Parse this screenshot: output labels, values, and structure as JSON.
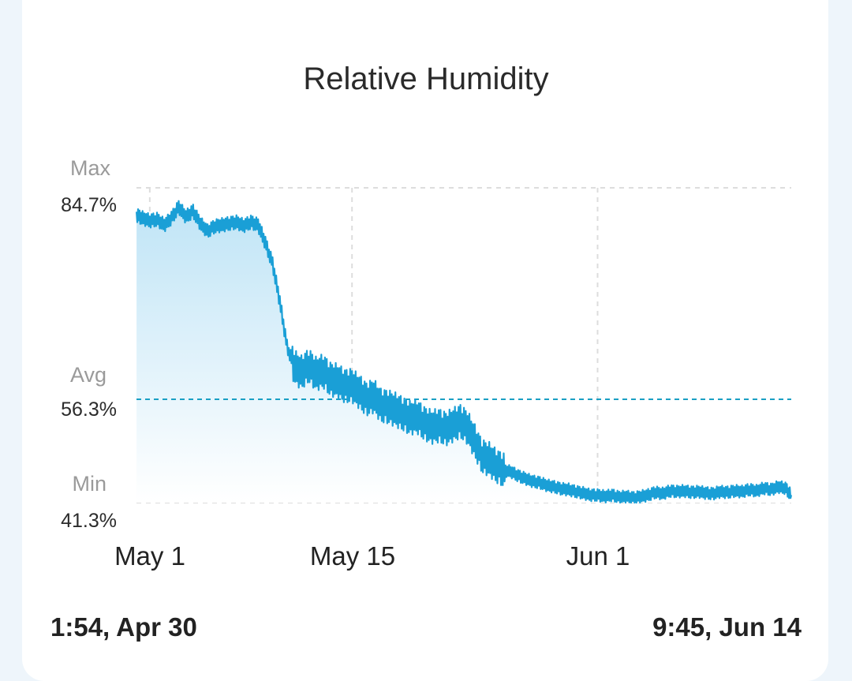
{
  "card": {
    "start_time": "1:54, Apr 30",
    "end_time": "9:45, Jun 14"
  },
  "chart_data": {
    "type": "area",
    "title": "Relative Humidity",
    "unit": "%",
    "xlim": [
      "2024-04-30T01:54",
      "2024-06-14T09:45"
    ],
    "ylim": [
      41.3,
      84.7
    ],
    "x_ticks": [
      {
        "date": "2024-05-01",
        "label": "May 1"
      },
      {
        "date": "2024-05-15",
        "label": "May 15"
      },
      {
        "date": "2024-06-01",
        "label": "Jun 1"
      }
    ],
    "stats": {
      "max": {
        "caption": "Max",
        "value": 84.7,
        "label": "84.7%"
      },
      "avg": {
        "caption": "Avg",
        "value": 56.3,
        "label": "56.3%"
      },
      "min": {
        "caption": "Min",
        "value": 41.3,
        "label": "41.3%"
      }
    },
    "grid": true,
    "colors": {
      "line": "#1a9fd6",
      "fill_top": "#bfe4f6",
      "avg_line": "#1a9fc4",
      "grid": "#dddddd"
    },
    "series": [
      {
        "points": [
          [
            "2024-04-30T02:00",
            83.0
          ],
          [
            "2024-04-30T12:00",
            82.6
          ],
          [
            "2024-05-01T00:00",
            82.2
          ],
          [
            "2024-05-01T12:00",
            82.4
          ],
          [
            "2024-05-02T00:00",
            81.6
          ],
          [
            "2024-05-02T12:00",
            82.6
          ],
          [
            "2024-05-03T00:00",
            84.2
          ],
          [
            "2024-05-03T12:00",
            82.8
          ],
          [
            "2024-05-04T00:00",
            83.6
          ],
          [
            "2024-05-04T12:00",
            81.8
          ],
          [
            "2024-05-05T00:00",
            80.7
          ],
          [
            "2024-05-05T12:00",
            81.4
          ],
          [
            "2024-05-06T00:00",
            81.6
          ],
          [
            "2024-05-06T12:00",
            81.8
          ],
          [
            "2024-05-07T00:00",
            82.0
          ],
          [
            "2024-05-07T12:00",
            81.5
          ],
          [
            "2024-05-08T00:00",
            82.0
          ],
          [
            "2024-05-08T12:00",
            81.6
          ],
          [
            "2024-05-09T00:00",
            79.0
          ],
          [
            "2024-05-09T12:00",
            76.0
          ],
          [
            "2024-05-10T00:00",
            70.5
          ],
          [
            "2024-05-10T12:00",
            64.0
          ],
          [
            "2024-05-11T00:00",
            61.0
          ],
          [
            "2024-05-11T12:00",
            60.2
          ],
          [
            "2024-05-12T00:00",
            61.2
          ],
          [
            "2024-05-12T12:00",
            60.0
          ],
          [
            "2024-05-13T00:00",
            60.4
          ],
          [
            "2024-05-13T12:00",
            59.2
          ],
          [
            "2024-05-14T00:00",
            59.0
          ],
          [
            "2024-05-14T12:00",
            58.2
          ],
          [
            "2024-05-15T00:00",
            58.3
          ],
          [
            "2024-05-15T12:00",
            57.4
          ],
          [
            "2024-05-16T00:00",
            56.3
          ],
          [
            "2024-05-16T12:00",
            56.8
          ],
          [
            "2024-05-17T00:00",
            55.4
          ],
          [
            "2024-05-17T12:00",
            55.2
          ],
          [
            "2024-05-18T00:00",
            54.8
          ],
          [
            "2024-05-18T12:00",
            54.2
          ],
          [
            "2024-05-19T00:00",
            53.6
          ],
          [
            "2024-05-19T12:00",
            53.8
          ],
          [
            "2024-05-20T00:00",
            52.8
          ],
          [
            "2024-05-20T12:00",
            52.3
          ],
          [
            "2024-05-21T00:00",
            52.5
          ],
          [
            "2024-05-21T12:00",
            52.0
          ],
          [
            "2024-05-22T00:00",
            52.6
          ],
          [
            "2024-05-22T12:00",
            53.1
          ],
          [
            "2024-05-23T00:00",
            52.2
          ],
          [
            "2024-05-23T12:00",
            50.2
          ],
          [
            "2024-05-24T00:00",
            48.0
          ],
          [
            "2024-05-24T12:00",
            47.6
          ],
          [
            "2024-05-25T00:00",
            46.6
          ],
          [
            "2024-05-25T12:00",
            46.0
          ],
          [
            "2024-05-26T00:00",
            45.8
          ],
          [
            "2024-05-26T12:00",
            45.2
          ],
          [
            "2024-05-27T00:00",
            44.8
          ],
          [
            "2024-05-27T12:00",
            44.4
          ],
          [
            "2024-05-28T00:00",
            44.2
          ],
          [
            "2024-05-28T12:00",
            43.8
          ],
          [
            "2024-05-29T00:00",
            43.6
          ],
          [
            "2024-05-29T12:00",
            43.3
          ],
          [
            "2024-05-30T00:00",
            43.2
          ],
          [
            "2024-05-30T12:00",
            42.9
          ],
          [
            "2024-05-31T00:00",
            42.7
          ],
          [
            "2024-05-31T12:00",
            42.4
          ],
          [
            "2024-06-01T00:00",
            42.4
          ],
          [
            "2024-06-01T12:00",
            42.2
          ],
          [
            "2024-06-02T00:00",
            42.4
          ],
          [
            "2024-06-02T12:00",
            42.1
          ],
          [
            "2024-06-03T00:00",
            42.2
          ],
          [
            "2024-06-03T12:00",
            42.0
          ],
          [
            "2024-06-04T00:00",
            42.2
          ],
          [
            "2024-06-04T12:00",
            42.4
          ],
          [
            "2024-06-05T00:00",
            42.8
          ],
          [
            "2024-06-05T12:00",
            42.6
          ],
          [
            "2024-06-06T00:00",
            43.0
          ],
          [
            "2024-06-06T12:00",
            42.9
          ],
          [
            "2024-06-07T00:00",
            43.0
          ],
          [
            "2024-06-07T12:00",
            42.8
          ],
          [
            "2024-06-08T00:00",
            42.9
          ],
          [
            "2024-06-08T12:00",
            42.7
          ],
          [
            "2024-06-09T00:00",
            42.6
          ],
          [
            "2024-06-09T12:00",
            42.9
          ],
          [
            "2024-06-10T00:00",
            42.8
          ],
          [
            "2024-06-10T12:00",
            43.0
          ],
          [
            "2024-06-11T00:00",
            42.9
          ],
          [
            "2024-06-11T12:00",
            43.2
          ],
          [
            "2024-06-12T00:00",
            43.0
          ],
          [
            "2024-06-12T12:00",
            43.4
          ],
          [
            "2024-06-13T00:00",
            43.2
          ],
          [
            "2024-06-13T12:00",
            43.6
          ],
          [
            "2024-06-14T00:00",
            43.4
          ],
          [
            "2024-06-14T09:45",
            42.4
          ]
        ]
      }
    ]
  }
}
